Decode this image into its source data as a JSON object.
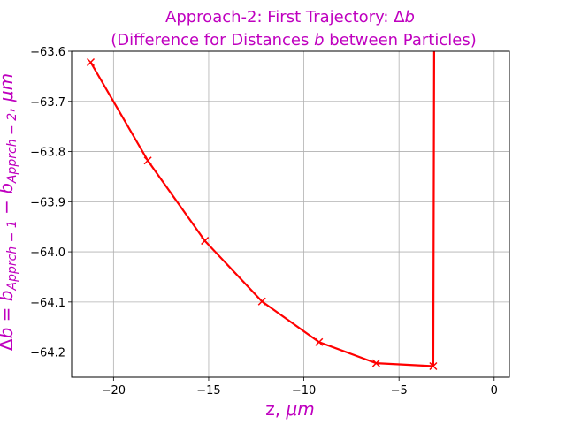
{
  "chart_data": {
    "type": "line",
    "title_line1": "Approach-2: First Trajectory: Δ",
    "title_line1_var": "b",
    "title_line2_pre": "(Difference for Distances ",
    "title_line2_var": "b",
    "title_line2_post": " between Particles)",
    "xlabel_pre": "z, ",
    "xlabel_unit": "μm",
    "ylabel_pre": "Δ",
    "ylabel_var": "b",
    "ylabel_eq": " = ",
    "ylabel_b1": "b",
    "ylabel_sub1": "Apprch − 1",
    "ylabel_minus": " − ",
    "ylabel_b2": "b",
    "ylabel_sub2": "Apprch − 2",
    "ylabel_post": ", ",
    "ylabel_unit": "μm",
    "xlim": [
      -22.2,
      0.8
    ],
    "ylim": [
      -64.25,
      -63.6
    ],
    "x_ticks": [
      -20,
      -15,
      -10,
      -5,
      0
    ],
    "x_tick_labels": [
      "−20",
      "−15",
      "−10",
      "−5",
      "0"
    ],
    "y_ticks": [
      -63.6,
      -63.7,
      -63.8,
      -63.9,
      -64.0,
      -64.1,
      -64.2
    ],
    "y_tick_labels": [
      "−63.6",
      "−63.7",
      "−63.8",
      "−63.9",
      "−64.0",
      "−64.1",
      "−64.2"
    ],
    "grid": true,
    "series": [
      {
        "color": "#ff0000",
        "marker": "x",
        "x": [
          -21.2,
          -18.2,
          -15.2,
          -12.2,
          -9.2,
          -6.2,
          -3.2,
          -3.15
        ],
        "y": [
          -63.622,
          -63.818,
          -63.978,
          -64.099,
          -64.18,
          -64.222,
          -64.228,
          -63.55
        ],
        "marker_points": [
          0,
          1,
          2,
          3,
          4,
          5,
          6
        ]
      }
    ]
  }
}
